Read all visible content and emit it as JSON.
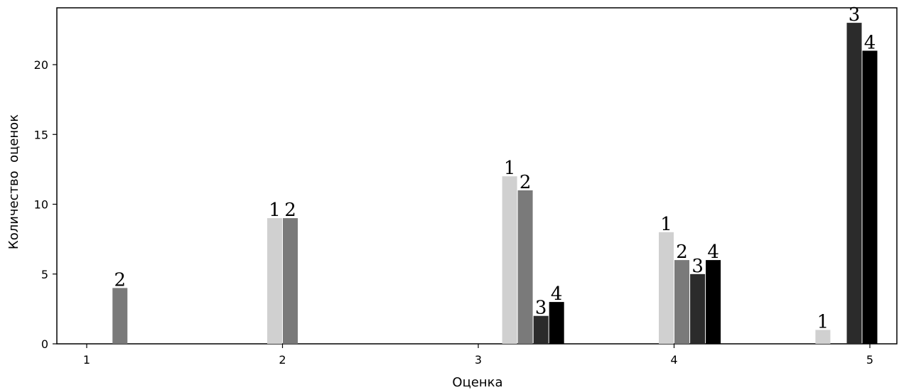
{
  "chart_data": {
    "type": "bar",
    "title": "",
    "xlabel": "Оценка",
    "ylabel": "Количество  оценок",
    "x_ticks": [
      "1",
      "2",
      "3",
      "4",
      "5"
    ],
    "y_ticks": [
      "0",
      "5",
      "10",
      "15",
      "20"
    ],
    "ylim": [
      0,
      24
    ],
    "grid": false,
    "bars": [
      {
        "x": 1.17,
        "value": 4,
        "label": "2",
        "series": "2",
        "color": "#7a7a7a"
      },
      {
        "x": 1.96,
        "value": 9,
        "label": "1",
        "series": "1",
        "color": "#d0d0d0"
      },
      {
        "x": 2.04,
        "value": 9,
        "label": "2",
        "series": "2",
        "color": "#7a7a7a"
      },
      {
        "x": 3.16,
        "value": 12,
        "label": "1",
        "series": "1",
        "color": "#d0d0d0"
      },
      {
        "x": 3.24,
        "value": 11,
        "label": "2",
        "series": "2",
        "color": "#7a7a7a"
      },
      {
        "x": 3.32,
        "value": 2,
        "label": "3",
        "series": "3",
        "color": "#2b2b2b"
      },
      {
        "x": 3.4,
        "value": 3,
        "label": "4",
        "series": "4",
        "color": "#000000"
      },
      {
        "x": 3.96,
        "value": 8,
        "label": "1",
        "series": "1",
        "color": "#d0d0d0"
      },
      {
        "x": 4.04,
        "value": 6,
        "label": "2",
        "series": "2",
        "color": "#7a7a7a"
      },
      {
        "x": 4.12,
        "value": 5,
        "label": "3",
        "series": "3",
        "color": "#2b2b2b"
      },
      {
        "x": 4.2,
        "value": 6,
        "label": "4",
        "series": "4",
        "color": "#000000"
      },
      {
        "x": 4.76,
        "value": 1,
        "label": "1",
        "series": "1",
        "color": "#d0d0d0"
      },
      {
        "x": 4.92,
        "value": 23,
        "label": "3",
        "series": "3",
        "color": "#2b2b2b"
      },
      {
        "x": 5.0,
        "value": 21,
        "label": "4",
        "series": "4",
        "color": "#000000"
      }
    ]
  }
}
